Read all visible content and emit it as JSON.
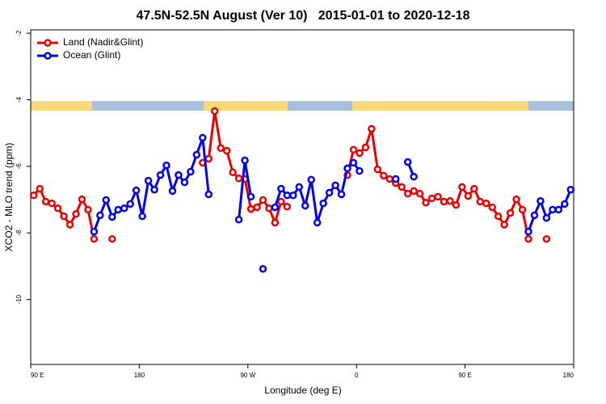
{
  "chart_data": {
    "type": "line",
    "title": "47.5N-52.5N August (Ver 10)   2015-01-01 to 2020-12-18",
    "x_label": "Longitude (deg E)",
    "y_label": "XCO2 - MLO trend (ppm)",
    "legend": "top-left",
    "xlim": [
      90,
      540
    ],
    "ylim": [
      -11.95,
      -1.9
    ],
    "xticks": [
      {
        "value": 90,
        "label": "90 E"
      },
      180,
      {
        "value": 270,
        "label": "90 W"
      },
      {
        "value": 360,
        "label": "0"
      },
      {
        "value": 450,
        "label": "90 E"
      },
      {
        "value": 540,
        "label": "180"
      }
    ],
    "yticks": [
      -2,
      -4,
      -6,
      -8,
      -10
    ],
    "x": [
      92.5,
      97.5,
      102.5,
      107.5,
      112.5,
      117.5,
      122.5,
      127.5,
      132.5,
      137.5,
      142.5,
      147.5,
      152.5,
      157.5,
      162.5,
      167.5,
      172.5,
      177.5,
      182.5,
      187.5,
      192.5,
      197.5,
      202.5,
      207.5,
      212.5,
      217.5,
      222.5,
      227.5,
      232.5,
      237.5,
      242.5,
      247.5,
      252.5,
      257.5,
      262.5,
      267.5,
      272.5,
      277.5,
      282.5,
      287.5,
      292.5,
      297.5,
      302.5,
      307.5,
      312.5,
      317.5,
      322.5,
      327.5,
      332.5,
      337.5,
      342.5,
      347.5,
      352.5,
      357.5,
      362.5,
      367.5,
      372.5,
      377.5,
      382.5,
      387.5,
      392.5,
      397.5,
      402.5,
      407.5,
      412.5,
      417.5,
      422.5,
      427.5,
      432.5,
      437.5,
      442.5,
      447.5,
      452.5,
      457.5,
      462.5,
      467.5,
      472.5,
      477.5,
      482.5,
      487.5,
      492.5,
      497.5,
      502.5,
      507.5,
      512.5,
      517.5,
      522.5,
      527.5,
      532.5,
      537.5
    ],
    "series": [
      {
        "name": "Land (Nadir&Glint)",
        "color": "#ee0000",
        "values": [
          -6.87,
          -6.67,
          -7.06,
          -7.11,
          -7.26,
          -7.5,
          -7.75,
          -7.43,
          -6.99,
          -7.3,
          -8.18,
          null,
          null,
          -8.18,
          null,
          null,
          null,
          null,
          null,
          null,
          null,
          null,
          null,
          null,
          null,
          null,
          null,
          null,
          -5.89,
          -5.77,
          -4.34,
          -5.45,
          -5.53,
          -6.18,
          -6.36,
          -6.38,
          -7.28,
          -7.23,
          -7.01,
          -7.26,
          -7.69,
          -7.06,
          -7.21,
          null,
          null,
          null,
          null,
          null,
          null,
          null,
          null,
          null,
          -6.26,
          -5.5,
          -5.6,
          -5.43,
          -4.87,
          -6.09,
          -6.28,
          -6.38,
          -6.5,
          -6.62,
          -6.82,
          -6.74,
          -6.82,
          -7.09,
          -6.96,
          -6.91,
          -7.06,
          -7.04,
          -7.16,
          -6.62,
          -6.89,
          -6.67,
          -7.06,
          -7.11,
          -7.23,
          -7.5,
          -7.75,
          -7.4,
          -6.99,
          -7.3,
          -8.18,
          null,
          null,
          -8.18,
          null,
          null,
          null,
          null
        ]
      },
      {
        "name": "Ocean (Glint)",
        "color": "#0000ee",
        "values": [
          null,
          null,
          null,
          null,
          null,
          null,
          null,
          null,
          null,
          null,
          -7.96,
          -7.47,
          -7.01,
          -7.52,
          -7.3,
          -7.26,
          -7.13,
          -6.72,
          -7.5,
          -6.43,
          -6.7,
          -6.26,
          -5.97,
          -6.74,
          -6.26,
          -6.48,
          -6.16,
          -5.65,
          -5.14,
          -6.84,
          null,
          null,
          null,
          null,
          -7.6,
          -5.82,
          -6.91,
          null,
          -9.08,
          null,
          -7.23,
          -6.67,
          -6.87,
          -6.87,
          -6.62,
          -7.18,
          -6.4,
          -7.69,
          -7.11,
          -6.79,
          -6.57,
          -6.84,
          -6.06,
          -5.89,
          -6.14,
          null,
          null,
          null,
          null,
          null,
          -6.38,
          null,
          -5.87,
          -6.31,
          null,
          null,
          null,
          null,
          null,
          null,
          null,
          null,
          null,
          null,
          null,
          null,
          null,
          null,
          null,
          null,
          null,
          null,
          -7.96,
          -7.47,
          -7.04,
          -7.55,
          -7.3,
          -7.3,
          -7.13,
          -6.7
        ]
      }
    ]
  }
}
